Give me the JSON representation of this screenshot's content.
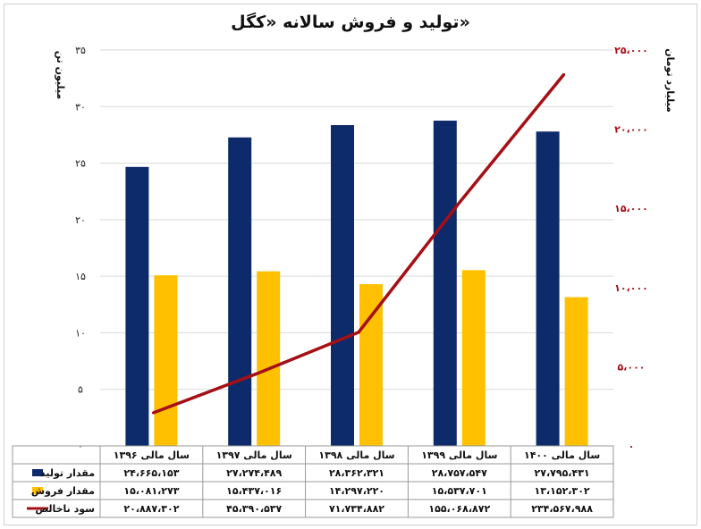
{
  "chart_data": {
    "type": "bar+line",
    "title": "تولید و فروش سالانه «کگل»",
    "left_axis": {
      "label": "میلیون تن",
      "range": [
        0,
        35
      ],
      "ticks": [
        "۰",
        "۵",
        "۱۰",
        "۱۵",
        "۲۰",
        "۲۵",
        "۳۰",
        "۳۵"
      ],
      "tick_values": [
        0,
        5,
        10,
        15,
        20,
        25,
        30,
        35
      ]
    },
    "right_axis": {
      "label": "میلیارد تومان",
      "range": [
        0,
        25000
      ],
      "ticks": [
        "۰",
        "۵،۰۰۰",
        "۱۰،۰۰۰",
        "۱۵،۰۰۰",
        "۲۰،۰۰۰",
        "۲۵،۰۰۰"
      ],
      "tick_values": [
        0,
        5000,
        10000,
        15000,
        20000,
        25000
      ]
    },
    "categories": [
      "سال مالی ۱۳۹۶",
      "سال مالی ۱۳۹۷",
      "سال مالی ۱۳۹۸",
      "سال مالی ۱۳۹۹",
      "سال مالی ۱۴۰۰"
    ],
    "series": [
      {
        "name": "مقدار تولید",
        "type": "bar",
        "axis": "left",
        "color": "#0d2a6b",
        "values": [
          24.665153,
          27.274489,
          28.362321,
          28.757547,
          27.795431
        ],
        "table_values": [
          "۲۴،۶۶۵،۱۵۳",
          "۲۷،۲۷۴،۴۸۹",
          "۲۸،۳۶۲،۳۲۱",
          "۲۸،۷۵۷،۵۴۷",
          "۲۷،۷۹۵،۴۳۱"
        ]
      },
      {
        "name": "مقدار فروش",
        "type": "bar",
        "axis": "left",
        "color": "#ffc000",
        "values": [
          15.081273,
          15.437016,
          14.29722,
          15.537701,
          13.152302
        ],
        "table_values": [
          "۱۵،۰۸۱،۲۷۳",
          "۱۵،۴۳۷،۰۱۶",
          "۱۴،۲۹۷،۲۲۰",
          "۱۵،۵۳۷،۷۰۱",
          "۱۳،۱۵۲،۳۰۲"
        ]
      },
      {
        "name": "سود ناخالص",
        "type": "line",
        "axis": "right",
        "color": "#a50f15",
        "values": [
          2088.7302,
          4539.0537,
          7173.4882,
          15506.8872,
          23456.7988
        ],
        "table_values": [
          "۲۰،۸۸۷،۳۰۲",
          "۴۵،۳۹۰،۵۳۷",
          "۷۱،۷۳۴،۸۸۲",
          "۱۵۵،۰۶۸،۸۷۲",
          "۲۳۴،۵۶۷،۹۸۸"
        ]
      }
    ]
  }
}
